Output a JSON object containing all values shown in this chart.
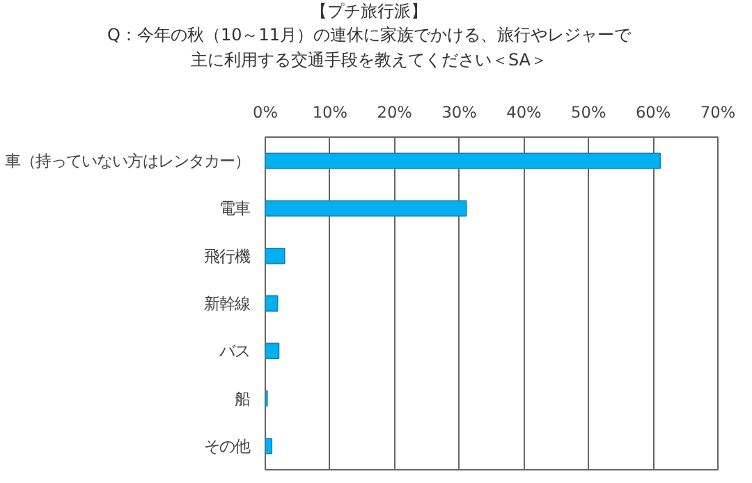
{
  "chart_data": {
    "type": "bar",
    "orientation": "horizontal",
    "title": "【プチ旅行派】",
    "subtitle": "Q：今年の秋（10～11月）の連休に家族でかける、旅行やレジャーで主に利用する交通手段を教えてください＜SA＞",
    "categories": [
      "車（持っていない方はレンタカー）",
      "電車",
      "飛行機",
      "新幹線",
      "バス",
      "船",
      "その他"
    ],
    "values": [
      61.1,
      31.1,
      3.0,
      1.9,
      2.1,
      0.3,
      1.0
    ],
    "color": "#00b0f0",
    "xlim": [
      0,
      70
    ],
    "xticks": [
      {
        "value": 0,
        "label": "0%"
      },
      {
        "value": 10,
        "label": "10%"
      },
      {
        "value": 20,
        "label": "20%"
      },
      {
        "value": 30,
        "label": "30%"
      },
      {
        "value": 40,
        "label": "40%"
      },
      {
        "value": 50,
        "label": "50%"
      },
      {
        "value": 60,
        "label": "60%"
      },
      {
        "value": 70,
        "label": "70%"
      }
    ],
    "grid": "x"
  }
}
